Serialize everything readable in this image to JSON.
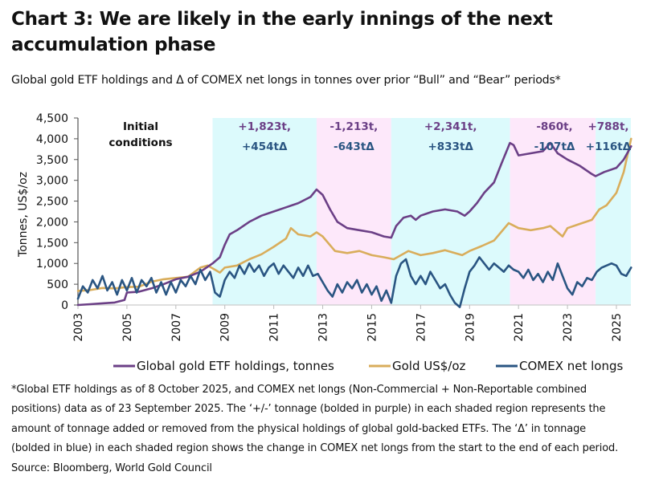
{
  "header": {
    "title": "Chart 3: We are likely in the early innings of the next accumulation phase",
    "subtitle": "Global gold ETF holdings and Δ of COMEX net longs in tonnes over prior “Bull” and “Bear” periods*"
  },
  "footnote": {
    "lines": [
      "*Global ETF holdings as of 8 October 2025, and COMEX net longs (Non-Commercial + Non-Reportable combined",
      "positions) data as of 23 September 2025. The ‘+/-’ tonnage (bolded in purple) in each shaded region represents the",
      "amount of tonnage added or removed from the physical holdings of global gold-backed ETFs. The ‘Δ’ in tonnage",
      "(bolded in blue) in each shaded region shows the change in COMEX net longs from the start to the end of each period."
    ],
    "source": "Source: Bloomberg, World Gold Council"
  },
  "chart_data": {
    "type": "line",
    "title": "Chart 3: We are likely in the early innings of the next accumulation phase",
    "subtitle": "Global gold ETF holdings and Δ of COMEX net longs in tonnes over prior “Bull” and “Bear” periods*",
    "xlabel": "",
    "ylabel": "Tonnes, US$/oz",
    "xlim": [
      2003,
      2025.8
    ],
    "ylim": [
      0,
      4500
    ],
    "yticks": [
      0,
      500,
      1000,
      1500,
      2000,
      2500,
      3000,
      3500,
      4000,
      4500
    ],
    "ytick_labels": [
      "0",
      "500",
      "1,000",
      "1,500",
      "2,000",
      "2,500",
      "3,000",
      "3,500",
      "4,000",
      "4,500"
    ],
    "xticks": [
      2003,
      2005,
      2007,
      2009,
      2011,
      2013,
      2015,
      2017,
      2019,
      2021,
      2023,
      2025
    ],
    "xtick_labels": [
      "2003",
      "2005",
      "2007",
      "2009",
      "2011",
      "2013",
      "2015",
      "2017",
      "2019",
      "2021",
      "2023",
      "2025"
    ],
    "grid": false,
    "legend_position": "bottom",
    "colors": {
      "etf": "#6b3f86",
      "gold": "#d9ad5b",
      "comex": "#2a5582",
      "bull_shade": "#dcfafc",
      "bear_shade": "#fde8fa"
    },
    "regions": [
      {
        "type": "initial",
        "start": 2003,
        "end": 2008.5,
        "label_line1": "Initial",
        "label_line2": "conditions"
      },
      {
        "type": "bull",
        "start": 2008.5,
        "end": 2012.75,
        "etf_change": "+1,823t,",
        "comex_delta": "+454tΔ"
      },
      {
        "type": "bear",
        "start": 2012.75,
        "end": 2015.8,
        "etf_change": "-1,213t,",
        "comex_delta": "-643tΔ"
      },
      {
        "type": "bull",
        "start": 2015.8,
        "end": 2020.65,
        "etf_change": "+2,341t,",
        "comex_delta": "+833tΔ"
      },
      {
        "type": "bear",
        "start": 2020.65,
        "end": 2024.15,
        "etf_change": "-860t,",
        "comex_delta": "-107tΔ"
      },
      {
        "type": "bull",
        "start": 2024.15,
        "end": 2025.6,
        "etf_change": "+788t,",
        "comex_delta": "+116tΔ"
      }
    ],
    "series": [
      {
        "name": "Global gold ETF holdings, tonnes",
        "x": [
          2003.0,
          2003.5,
          2004.0,
          2004.5,
          2004.9,
          2005.0,
          2005.5,
          2006.0,
          2006.5,
          2007.0,
          2007.5,
          2008.0,
          2008.5,
          2008.8,
          2009.0,
          2009.2,
          2009.5,
          2010.0,
          2010.5,
          2011.0,
          2011.5,
          2012.0,
          2012.5,
          2012.75,
          2013.0,
          2013.3,
          2013.6,
          2014.0,
          2014.5,
          2015.0,
          2015.5,
          2015.8,
          2016.0,
          2016.3,
          2016.6,
          2016.8,
          2017.0,
          2017.5,
          2018.0,
          2018.5,
          2018.8,
          2019.0,
          2019.3,
          2019.6,
          2020.0,
          2020.3,
          2020.65,
          2020.8,
          2021.0,
          2021.5,
          2022.0,
          2022.3,
          2022.6,
          2023.0,
          2023.5,
          2024.0,
          2024.15,
          2024.5,
          2025.0,
          2025.3,
          2025.6
        ],
        "values": [
          0,
          20,
          40,
          60,
          120,
          300,
          320,
          400,
          500,
          620,
          680,
          800,
          1000,
          1150,
          1450,
          1700,
          1800,
          2000,
          2150,
          2250,
          2350,
          2450,
          2600,
          2780,
          2650,
          2300,
          2000,
          1850,
          1800,
          1750,
          1650,
          1620,
          1900,
          2100,
          2150,
          2050,
          2150,
          2250,
          2300,
          2250,
          2150,
          2250,
          2450,
          2700,
          2950,
          3400,
          3900,
          3850,
          3600,
          3650,
          3700,
          3900,
          3650,
          3500,
          3350,
          3150,
          3100,
          3200,
          3300,
          3500,
          3820
        ]
      },
      {
        "name": "Gold US$/oz",
        "x": [
          2003.0,
          2003.5,
          2004.0,
          2004.5,
          2005.0,
          2005.5,
          2006.0,
          2006.5,
          2007.0,
          2007.5,
          2008.0,
          2008.3,
          2008.8,
          2009.0,
          2009.5,
          2010.0,
          2010.5,
          2011.0,
          2011.5,
          2011.7,
          2012.0,
          2012.5,
          2012.75,
          2013.0,
          2013.5,
          2014.0,
          2014.5,
          2015.0,
          2015.5,
          2015.9,
          2016.5,
          2017.0,
          2017.5,
          2018.0,
          2018.7,
          2019.0,
          2019.5,
          2020.0,
          2020.6,
          2021.0,
          2021.5,
          2022.0,
          2022.3,
          2022.8,
          2023.0,
          2023.5,
          2024.0,
          2024.3,
          2024.6,
          2025.0,
          2025.3,
          2025.6
        ],
        "values": [
          340,
          360,
          410,
          400,
          430,
          440,
          560,
          620,
          650,
          680,
          900,
          950,
          780,
          900,
          950,
          1100,
          1220,
          1400,
          1600,
          1850,
          1700,
          1650,
          1750,
          1650,
          1300,
          1250,
          1300,
          1200,
          1150,
          1100,
          1300,
          1200,
          1250,
          1320,
          1200,
          1300,
          1420,
          1550,
          1970,
          1850,
          1800,
          1850,
          1900,
          1650,
          1850,
          1950,
          2050,
          2300,
          2400,
          2700,
          3200,
          4000
        ]
      },
      {
        "name": "COMEX net longs",
        "x": [
          2003.0,
          2003.2,
          2003.4,
          2003.6,
          2003.8,
          2004.0,
          2004.2,
          2004.4,
          2004.6,
          2004.8,
          2005.0,
          2005.2,
          2005.4,
          2005.6,
          2005.8,
          2006.0,
          2006.2,
          2006.4,
          2006.6,
          2006.8,
          2007.0,
          2007.2,
          2007.4,
          2007.6,
          2007.8,
          2008.0,
          2008.2,
          2008.4,
          2008.6,
          2008.8,
          2009.0,
          2009.2,
          2009.4,
          2009.6,
          2009.8,
          2010.0,
          2010.2,
          2010.4,
          2010.6,
          2010.8,
          2011.0,
          2011.2,
          2011.4,
          2011.6,
          2011.8,
          2012.0,
          2012.2,
          2012.4,
          2012.6,
          2012.8,
          2013.0,
          2013.2,
          2013.4,
          2013.6,
          2013.8,
          2014.0,
          2014.2,
          2014.4,
          2014.6,
          2014.8,
          2015.0,
          2015.2,
          2015.4,
          2015.6,
          2015.8,
          2016.0,
          2016.2,
          2016.4,
          2016.6,
          2016.8,
          2017.0,
          2017.2,
          2017.4,
          2017.6,
          2017.8,
          2018.0,
          2018.2,
          2018.4,
          2018.6,
          2018.8,
          2019.0,
          2019.2,
          2019.4,
          2019.6,
          2019.8,
          2020.0,
          2020.2,
          2020.4,
          2020.6,
          2020.8,
          2021.0,
          2021.2,
          2021.4,
          2021.6,
          2021.8,
          2022.0,
          2022.2,
          2022.4,
          2022.6,
          2022.8,
          2023.0,
          2023.2,
          2023.4,
          2023.6,
          2023.8,
          2024.0,
          2024.2,
          2024.4,
          2024.6,
          2024.8,
          2025.0,
          2025.2,
          2025.4,
          2025.6
        ],
        "values": [
          150,
          450,
          300,
          600,
          400,
          700,
          350,
          550,
          250,
          600,
          350,
          650,
          300,
          600,
          450,
          650,
          300,
          550,
          250,
          550,
          300,
          600,
          450,
          700,
          500,
          850,
          600,
          800,
          300,
          200,
          600,
          800,
          650,
          950,
          750,
          1000,
          800,
          950,
          700,
          900,
          1000,
          750,
          950,
          800,
          650,
          900,
          700,
          950,
          700,
          750,
          550,
          350,
          200,
          500,
          300,
          550,
          400,
          600,
          300,
          500,
          250,
          450,
          100,
          350,
          50,
          700,
          1000,
          1100,
          700,
          500,
          700,
          500,
          800,
          600,
          400,
          500,
          250,
          50,
          -50,
          400,
          800,
          950,
          1150,
          1000,
          850,
          1000,
          900,
          800,
          950,
          850,
          800,
          650,
          850,
          600,
          750,
          550,
          800,
          600,
          1000,
          700,
          400,
          250,
          550,
          450,
          650,
          600,
          800,
          900,
          950,
          1000,
          950,
          750,
          700,
          900
        ]
      }
    ]
  }
}
